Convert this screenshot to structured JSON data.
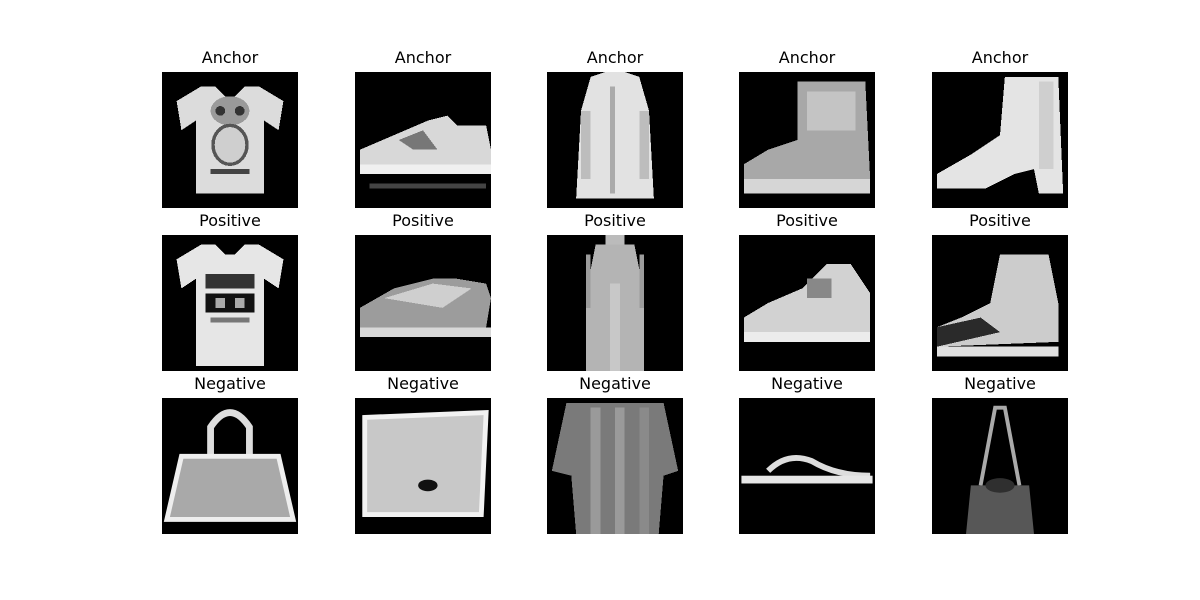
{
  "figure": {
    "rows": [
      {
        "label": "Anchor",
        "images": [
          {
            "title": "Anchor",
            "depicts": "t-shirt"
          },
          {
            "title": "Anchor",
            "depicts": "sneaker"
          },
          {
            "title": "Anchor",
            "depicts": "coat"
          },
          {
            "title": "Anchor",
            "depicts": "boot"
          },
          {
            "title": "Anchor",
            "depicts": "boot"
          }
        ]
      },
      {
        "label": "Positive",
        "images": [
          {
            "title": "Positive",
            "depicts": "t-shirt"
          },
          {
            "title": "Positive",
            "depicts": "sneaker"
          },
          {
            "title": "Positive",
            "depicts": "dress"
          },
          {
            "title": "Positive",
            "depicts": "sneaker"
          },
          {
            "title": "Positive",
            "depicts": "boot"
          }
        ]
      },
      {
        "label": "Negative",
        "images": [
          {
            "title": "Negative",
            "depicts": "bag"
          },
          {
            "title": "Negative",
            "depicts": "bag"
          },
          {
            "title": "Negative",
            "depicts": "dress"
          },
          {
            "title": "Negative",
            "depicts": "sandal"
          },
          {
            "title": "Negative",
            "depicts": "bag"
          }
        ]
      }
    ]
  },
  "colors": {
    "image_background": "#000000",
    "item_light": "#e0e0e0",
    "item_mid": "#b0b0b0",
    "item_dark": "#6a6a6a"
  }
}
